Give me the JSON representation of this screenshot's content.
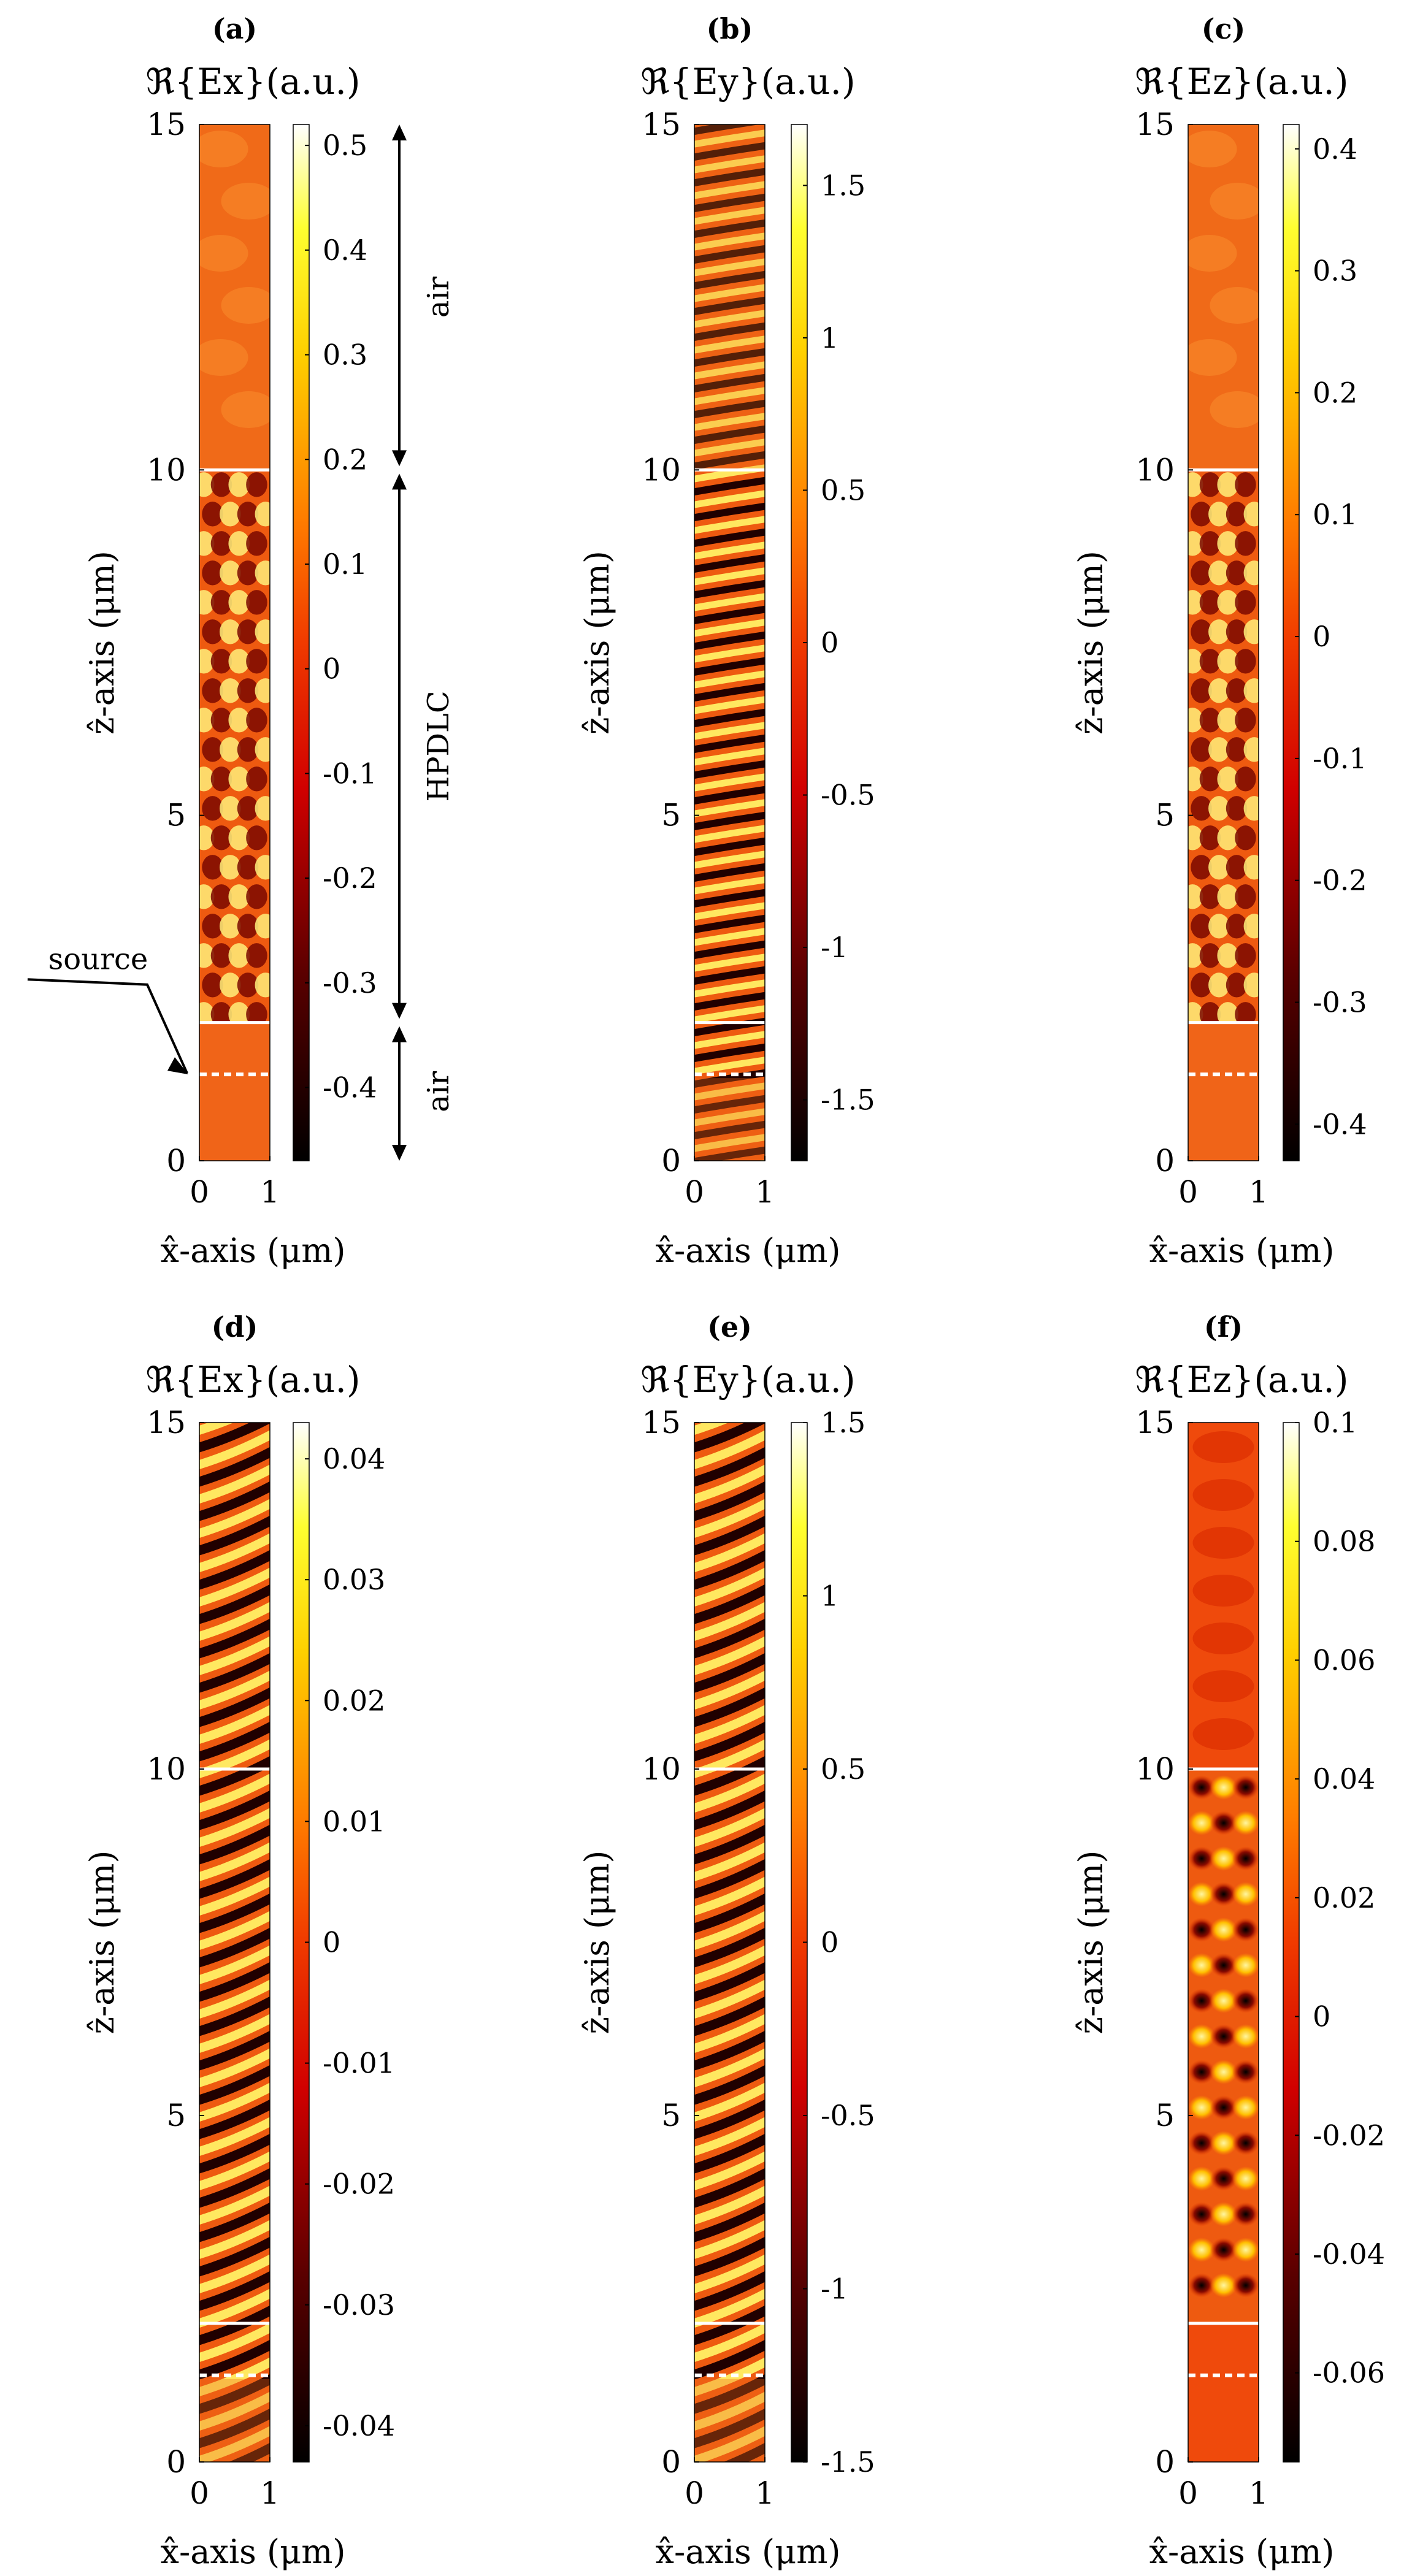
{
  "chart_data": [
    {
      "type": "heatmap",
      "panel_label": "(a)",
      "title": "ℜ{Ex}(a.u.)",
      "xlabel": "x̂-axis (μm)",
      "ylabel": "ẑ-axis (μm)",
      "xlim": [
        0,
        1
      ],
      "ylim": [
        0,
        15
      ],
      "xticks": [
        "0",
        "1"
      ],
      "yticks": [
        "0",
        "5",
        "10",
        "15"
      ],
      "colorbar": {
        "min": -0.47,
        "max": 0.52,
        "ticks": [
          "0.5",
          "0.4",
          "0.3",
          "0.2",
          "0.1",
          "0",
          "-0.1",
          "-0.2",
          "-0.3",
          "-0.4"
        ],
        "tick_values": [
          0.5,
          0.4,
          0.3,
          0.2,
          0.1,
          0,
          -0.1,
          -0.2,
          -0.3,
          -0.4
        ]
      },
      "pattern": "checker",
      "interfaces": [
        2,
        10
      ],
      "source_z": 1.25,
      "annotations": [
        "air",
        "HPDLC",
        "air",
        "source"
      ]
    },
    {
      "type": "heatmap",
      "panel_label": "(b)",
      "title": "ℜ{Ey}(a.u.)",
      "xlabel": "x̂-axis (μm)",
      "ylabel": "ẑ-axis (μm)",
      "xlim": [
        0,
        1
      ],
      "ylim": [
        0,
        15
      ],
      "xticks": [
        "0",
        "1"
      ],
      "yticks": [
        "0",
        "5",
        "10",
        "15"
      ],
      "colorbar": {
        "min": -1.7,
        "max": 1.7,
        "ticks": [
          "1.5",
          "1",
          "0.5",
          "0",
          "-0.5",
          "-1",
          "-1.5"
        ],
        "tick_values": [
          1.5,
          1,
          0.5,
          0,
          -0.5,
          -1,
          -1.5
        ]
      },
      "pattern": "stripes",
      "interfaces": [
        2,
        10
      ],
      "source_z": 1.25
    },
    {
      "type": "heatmap",
      "panel_label": "(c)",
      "title": "ℜ{Ez}(a.u.)",
      "xlabel": "x̂-axis (μm)",
      "ylabel": "ẑ-axis (μm)",
      "xlim": [
        0,
        1
      ],
      "ylim": [
        0,
        15
      ],
      "xticks": [
        "0",
        "1"
      ],
      "yticks": [
        "0",
        "5",
        "10",
        "15"
      ],
      "colorbar": {
        "min": -0.43,
        "max": 0.42,
        "ticks": [
          "0.4",
          "0.3",
          "0.2",
          "0.1",
          "0",
          "-0.1",
          "-0.2",
          "-0.3",
          "-0.4"
        ],
        "tick_values": [
          0.4,
          0.3,
          0.2,
          0.1,
          0,
          -0.1,
          -0.2,
          -0.3,
          -0.4
        ]
      },
      "pattern": "checker",
      "interfaces": [
        2,
        10
      ],
      "source_z": 1.25
    },
    {
      "type": "heatmap",
      "panel_label": "(d)",
      "title": "ℜ{Ex}(a.u.)",
      "xlabel": "x̂-axis (μm)",
      "ylabel": "ẑ-axis (μm)",
      "xlim": [
        0,
        1
      ],
      "ylim": [
        0,
        15
      ],
      "xticks": [
        "0",
        "1"
      ],
      "yticks": [
        "0",
        "5",
        "10",
        "15"
      ],
      "colorbar": {
        "min": -0.043,
        "max": 0.043,
        "ticks": [
          "0.04",
          "0.03",
          "0.02",
          "0.01",
          "0",
          "-0.01",
          "-0.02",
          "-0.03",
          "-0.04"
        ],
        "tick_values": [
          0.04,
          0.03,
          0.02,
          0.01,
          0,
          -0.01,
          -0.02,
          -0.03,
          -0.04
        ]
      },
      "pattern": "stripes-tilted",
      "interfaces": [
        2,
        10
      ],
      "source_z": 1.25
    },
    {
      "type": "heatmap",
      "panel_label": "(e)",
      "title": "ℜ{Ey}(a.u.)",
      "xlabel": "x̂-axis (μm)",
      "ylabel": "ẑ-axis (μm)",
      "xlim": [
        0,
        1
      ],
      "ylim": [
        0,
        15
      ],
      "xticks": [
        "0",
        "1"
      ],
      "yticks": [
        "0",
        "5",
        "10",
        "15"
      ],
      "colorbar": {
        "min": -1.5,
        "max": 1.5,
        "ticks": [
          "1.5",
          "1",
          "0.5",
          "0",
          "-0.5",
          "-1",
          "-1.5"
        ],
        "tick_values": [
          1.5,
          1,
          0.5,
          0,
          -0.5,
          -1,
          -1.5
        ]
      },
      "pattern": "stripes-tilted",
      "interfaces": [
        2,
        10
      ],
      "source_z": 1.25
    },
    {
      "type": "heatmap",
      "panel_label": "(f)",
      "title": "ℜ{Ez}(a.u.)",
      "xlabel": "x̂-axis (μm)",
      "ylabel": "ẑ-axis (μm)",
      "xlim": [
        0,
        1
      ],
      "ylim": [
        0,
        15
      ],
      "xticks": [
        "0",
        "1"
      ],
      "yticks": [
        "0",
        "5",
        "10",
        "15"
      ],
      "colorbar": {
        "min": -0.075,
        "max": 0.1,
        "ticks": [
          "0.1",
          "0.08",
          "0.06",
          "0.04",
          "0.02",
          "0",
          "-0.02",
          "-0.04",
          "-0.06"
        ],
        "tick_values": [
          0.1,
          0.08,
          0.06,
          0.04,
          0.02,
          0,
          -0.02,
          -0.04,
          -0.06
        ]
      },
      "pattern": "blobs",
      "interfaces": [
        2,
        10
      ],
      "source_z": 1.25
    }
  ]
}
